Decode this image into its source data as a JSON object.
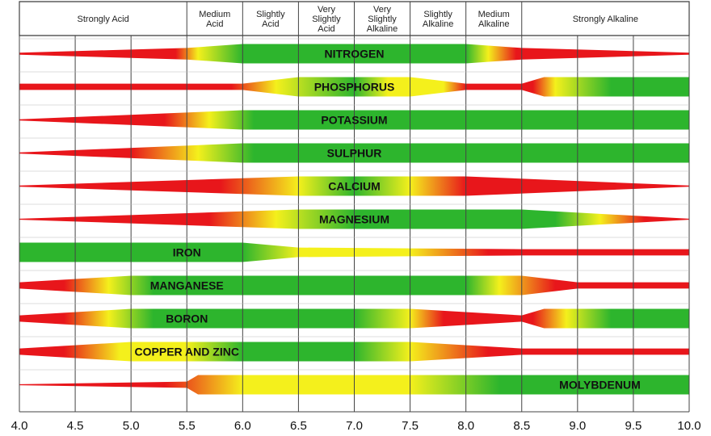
{
  "chart_data": {
    "type": "band",
    "x_axis": {
      "range": [
        4.0,
        10.0
      ],
      "ticks": [
        "4.0",
        "4.5",
        "5.0",
        "5.5",
        "6.0",
        "6.5",
        "7.0",
        "7.5",
        "8.0",
        "8.5",
        "9.0",
        "9.5",
        "10.0"
      ]
    },
    "zones": [
      {
        "label": [
          "Strongly Acid"
        ],
        "from": 4.0,
        "to": 5.5
      },
      {
        "label": [
          "Medium",
          "Acid"
        ],
        "from": 5.5,
        "to": 6.0
      },
      {
        "label": [
          "Slightly",
          "Acid"
        ],
        "from": 6.0,
        "to": 6.5
      },
      {
        "label": [
          "Very",
          "Slightly",
          "Acid"
        ],
        "from": 6.5,
        "to": 7.0
      },
      {
        "label": [
          "Very",
          "Slightly",
          "Alkaline"
        ],
        "from": 7.0,
        "to": 7.5
      },
      {
        "label": [
          "Slightly",
          "Alkaline"
        ],
        "from": 7.5,
        "to": 8.0
      },
      {
        "label": [
          "Medium",
          "Alkaline"
        ],
        "from": 8.0,
        "to": 8.5
      },
      {
        "label": [
          "Strongly Alkaline"
        ],
        "from": 8.5,
        "to": 10.0
      }
    ],
    "legend_colors": {
      "low": "#e8161b",
      "medium": "#f4f01c",
      "high": "#2db52d"
    },
    "series": [
      {
        "name": "NITROGEN",
        "label_x": 7.0,
        "width": [
          [
            4.0,
            0.1
          ],
          [
            5.5,
            0.55
          ],
          [
            6.0,
            0.92
          ],
          [
            8.0,
            0.92
          ],
          [
            8.5,
            0.55
          ],
          [
            10.0,
            0.1
          ]
        ],
        "color": [
          [
            4.0,
            "#e8161b"
          ],
          [
            5.4,
            "#e8161b"
          ],
          [
            5.6,
            "#f4f01c"
          ],
          [
            6.0,
            "#2db52d"
          ],
          [
            8.0,
            "#2db52d"
          ],
          [
            8.2,
            "#f4f01c"
          ],
          [
            8.45,
            "#e8161b"
          ],
          [
            10.0,
            "#e8161b"
          ]
        ]
      },
      {
        "name": "PHOSPHORUS",
        "label_x": 7.0,
        "width": [
          [
            4.0,
            0.3
          ],
          [
            6.0,
            0.3
          ],
          [
            6.5,
            0.92
          ],
          [
            7.5,
            0.92
          ],
          [
            8.0,
            0.3
          ],
          [
            8.5,
            0.3
          ],
          [
            8.7,
            0.92
          ],
          [
            10.0,
            0.92
          ]
        ],
        "color": [
          [
            4.0,
            "#e8161b"
          ],
          [
            5.9,
            "#e8161b"
          ],
          [
            6.3,
            "#f4f01c"
          ],
          [
            7.0,
            "#2db52d"
          ],
          [
            7.3,
            "#f4f01c"
          ],
          [
            7.8,
            "#f4f01c"
          ],
          [
            8.0,
            "#e8161b"
          ],
          [
            8.6,
            "#e8161b"
          ],
          [
            8.8,
            "#f4f01c"
          ],
          [
            9.3,
            "#2db52d"
          ],
          [
            10.0,
            "#2db52d"
          ]
        ]
      },
      {
        "name": "POTASSIUM",
        "label_x": 7.0,
        "width": [
          [
            4.0,
            0.05
          ],
          [
            6.0,
            0.92
          ],
          [
            10.0,
            0.92
          ]
        ],
        "color": [
          [
            4.0,
            "#e8161b"
          ],
          [
            5.3,
            "#e8161b"
          ],
          [
            5.7,
            "#f4f01c"
          ],
          [
            6.1,
            "#2db52d"
          ],
          [
            10.0,
            "#2db52d"
          ]
        ]
      },
      {
        "name": "SULPHUR",
        "label_x": 7.0,
        "width": [
          [
            4.0,
            0.05
          ],
          [
            6.0,
            0.92
          ],
          [
            10.0,
            0.92
          ]
        ],
        "color": [
          [
            4.0,
            "#e8161b"
          ],
          [
            5.0,
            "#e8161b"
          ],
          [
            5.6,
            "#f4f01c"
          ],
          [
            6.1,
            "#2db52d"
          ],
          [
            10.0,
            "#2db52d"
          ]
        ]
      },
      {
        "name": "CALCIUM",
        "label_x": 7.0,
        "width": [
          [
            4.0,
            0.05
          ],
          [
            6.5,
            0.92
          ],
          [
            8.0,
            0.92
          ],
          [
            10.0,
            0.05
          ]
        ],
        "color": [
          [
            4.0,
            "#e8161b"
          ],
          [
            5.8,
            "#e8161b"
          ],
          [
            6.5,
            "#f4f01c"
          ],
          [
            7.0,
            "#2db52d"
          ],
          [
            7.5,
            "#f4f01c"
          ],
          [
            8.0,
            "#e8161b"
          ],
          [
            10.0,
            "#e8161b"
          ]
        ]
      },
      {
        "name": "MAGNESIUM",
        "label_x": 7.0,
        "width": [
          [
            4.0,
            0.05
          ],
          [
            6.5,
            0.92
          ],
          [
            8.5,
            0.92
          ],
          [
            10.0,
            0.05
          ]
        ],
        "color": [
          [
            4.0,
            "#e8161b"
          ],
          [
            5.7,
            "#e8161b"
          ],
          [
            6.3,
            "#f4f01c"
          ],
          [
            7.0,
            "#2db52d"
          ],
          [
            8.8,
            "#2db52d"
          ],
          [
            9.2,
            "#f4f01c"
          ],
          [
            9.6,
            "#e8161b"
          ],
          [
            10.0,
            "#e8161b"
          ]
        ]
      },
      {
        "name": "IRON",
        "label_x": 5.5,
        "width": [
          [
            4.0,
            0.92
          ],
          [
            6.0,
            0.92
          ],
          [
            6.5,
            0.45
          ],
          [
            8.5,
            0.3
          ],
          [
            10.0,
            0.3
          ]
        ],
        "color": [
          [
            4.0,
            "#2db52d"
          ],
          [
            6.0,
            "#2db52d"
          ],
          [
            6.5,
            "#f4f01c"
          ],
          [
            7.5,
            "#f4f01c"
          ],
          [
            8.2,
            "#e8161b"
          ],
          [
            10.0,
            "#e8161b"
          ]
        ]
      },
      {
        "name": "MANGANESE",
        "label_x": 5.5,
        "width": [
          [
            4.0,
            0.3
          ],
          [
            5.0,
            0.92
          ],
          [
            8.5,
            0.92
          ],
          [
            9.0,
            0.3
          ],
          [
            10.0,
            0.3
          ]
        ],
        "color": [
          [
            4.0,
            "#e8161b"
          ],
          [
            4.4,
            "#e8161b"
          ],
          [
            4.8,
            "#f4f01c"
          ],
          [
            5.2,
            "#2db52d"
          ],
          [
            8.0,
            "#2db52d"
          ],
          [
            8.3,
            "#f4f01c"
          ],
          [
            8.8,
            "#e8161b"
          ],
          [
            10.0,
            "#e8161b"
          ]
        ]
      },
      {
        "name": "BORON",
        "label_x": 5.5,
        "width": [
          [
            4.0,
            0.3
          ],
          [
            5.0,
            0.92
          ],
          [
            7.5,
            0.92
          ],
          [
            8.5,
            0.3
          ],
          [
            8.7,
            0.92
          ],
          [
            10.0,
            0.92
          ]
        ],
        "color": [
          [
            4.0,
            "#e8161b"
          ],
          [
            4.4,
            "#e8161b"
          ],
          [
            4.8,
            "#f4f01c"
          ],
          [
            5.2,
            "#2db52d"
          ],
          [
            7.0,
            "#2db52d"
          ],
          [
            7.5,
            "#f4f01c"
          ],
          [
            7.8,
            "#e8161b"
          ],
          [
            8.6,
            "#e8161b"
          ],
          [
            8.9,
            "#f4f01c"
          ],
          [
            9.3,
            "#2db52d"
          ],
          [
            10.0,
            "#2db52d"
          ]
        ]
      },
      {
        "name": "COPPER AND ZINC",
        "label_x": 5.5,
        "width": [
          [
            4.0,
            0.3
          ],
          [
            5.0,
            0.92
          ],
          [
            7.5,
            0.92
          ],
          [
            8.5,
            0.3
          ],
          [
            10.0,
            0.3
          ]
        ],
        "color": [
          [
            4.0,
            "#e8161b"
          ],
          [
            4.4,
            "#e8161b"
          ],
          [
            4.9,
            "#f4f01c"
          ],
          [
            5.5,
            "#f4f01c"
          ],
          [
            6.0,
            "#2db52d"
          ],
          [
            7.0,
            "#2db52d"
          ],
          [
            7.5,
            "#f4f01c"
          ],
          [
            8.2,
            "#e8161b"
          ],
          [
            10.0,
            "#e8161b"
          ]
        ]
      },
      {
        "name": "MOLYBDENUM",
        "label_x": 9.2,
        "width": [
          [
            4.0,
            0.05
          ],
          [
            5.5,
            0.3
          ],
          [
            5.6,
            0.92
          ],
          [
            10.0,
            0.92
          ]
        ],
        "color": [
          [
            4.0,
            "#e8161b"
          ],
          [
            5.3,
            "#e8161b"
          ],
          [
            6.0,
            "#f4f01c"
          ],
          [
            7.5,
            "#f4f01c"
          ],
          [
            8.3,
            "#2db52d"
          ],
          [
            10.0,
            "#2db52d"
          ]
        ]
      }
    ]
  }
}
